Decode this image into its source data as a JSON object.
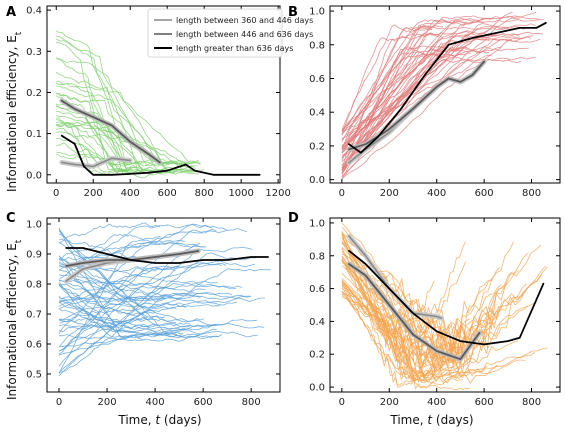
{
  "figure": {
    "ylabel_top": "Informational efficiency, E_t",
    "ylabel_bottom": "Informational efficiency, E_t",
    "xlabel_left": "Time, t (days)",
    "xlabel_right": "Time, t (days)"
  },
  "legend": {
    "placement": "top-right of panel A",
    "items": [
      {
        "label": "length between 360 and 446 days",
        "color": "#888888"
      },
      {
        "label": "length between 446 and 636 days",
        "color": "#555555"
      },
      {
        "label": "length greater than 636 days",
        "color": "#000000"
      }
    ]
  },
  "chart_data": [
    {
      "panel": "A",
      "type": "line",
      "thin_color": "#7ccf6a",
      "xlim": [
        -50,
        1210
      ],
      "ylim": [
        -0.02,
        0.41
      ],
      "xticks": [
        0,
        200,
        400,
        600,
        800,
        1000,
        1200
      ],
      "yticks": [
        0.0,
        0.1,
        0.2,
        0.3,
        0.4
      ],
      "yticklabels": [
        "0.0",
        "0.1",
        "0.2",
        "0.3",
        "0.4"
      ],
      "series": [
        {
          "style": "short",
          "x": [
            30,
            100,
            200,
            300,
            400
          ],
          "y": [
            0.03,
            0.025,
            0.02,
            0.04,
            0.035
          ]
        },
        {
          "style": "medium",
          "x": [
            30,
            100,
            200,
            300,
            400,
            500,
            560
          ],
          "y": [
            0.18,
            0.16,
            0.14,
            0.12,
            0.08,
            0.05,
            0.03
          ]
        },
        {
          "style": "long",
          "x": [
            30,
            100,
            150,
            200,
            300,
            400,
            500,
            600,
            700,
            750,
            850,
            1100
          ],
          "y": [
            0.095,
            0.075,
            0.02,
            0.0,
            0.0,
            0.002,
            0.005,
            0.01,
            0.025,
            0.01,
            0.0,
            0.0
          ]
        }
      ],
      "samples": {
        "count": 30,
        "xmax": [
          360,
          800
        ],
        "start": [
          0.05,
          0.36
        ],
        "end": [
          0.0,
          0.03
        ],
        "drop": [
          0.35,
          1.0
        ],
        "seed": 11,
        "monotone": "down"
      }
    },
    {
      "panel": "B",
      "type": "line",
      "thin_color": "#e07a7a",
      "xlim": [
        -50,
        920
      ],
      "ylim": [
        -0.02,
        1.03
      ],
      "xticks": [
        0,
        200,
        400,
        600,
        800
      ],
      "yticks": [
        0.0,
        0.2,
        0.4,
        0.6,
        0.8,
        1.0
      ],
      "yticklabels": [
        "0.0",
        "0.2",
        "0.4",
        "0.6",
        "0.8",
        "1.0"
      ],
      "series": [
        {
          "style": "short",
          "x": [
            30,
            100,
            200,
            300,
            400
          ],
          "y": [
            0.1,
            0.18,
            0.28,
            0.42,
            0.55
          ]
        },
        {
          "style": "medium",
          "x": [
            30,
            100,
            200,
            300,
            400,
            450,
            500,
            550,
            600
          ],
          "y": [
            0.18,
            0.21,
            0.3,
            0.42,
            0.55,
            0.6,
            0.58,
            0.62,
            0.7
          ]
        },
        {
          "style": "long",
          "x": [
            30,
            80,
            150,
            250,
            350,
            450,
            550,
            650,
            750,
            820,
            860
          ],
          "y": [
            0.21,
            0.16,
            0.25,
            0.42,
            0.62,
            0.8,
            0.84,
            0.87,
            0.9,
            0.9,
            0.93
          ]
        }
      ],
      "samples": {
        "count": 45,
        "xmax": [
          350,
          880
        ],
        "start": [
          0.0,
          0.3
        ],
        "end": [
          0.7,
          1.0
        ],
        "drop": [
          0.4,
          1.0
        ],
        "seed": 23,
        "monotone": "up"
      }
    },
    {
      "panel": "C",
      "type": "line",
      "thin_color": "#5aa0d8",
      "xlim": [
        -50,
        920
      ],
      "ylim": [
        0.44,
        1.02
      ],
      "xticks": [
        0,
        200,
        400,
        600,
        800
      ],
      "yticks": [
        0.5,
        0.6,
        0.7,
        0.8,
        0.9,
        1.0
      ],
      "yticklabels": [
        "0.5",
        "0.6",
        "0.7",
        "0.8",
        "0.9",
        "1.0"
      ],
      "series": [
        {
          "style": "short",
          "x": [
            30,
            100,
            200,
            300,
            400
          ],
          "y": [
            0.81,
            0.85,
            0.87,
            0.88,
            0.89
          ]
        },
        {
          "style": "medium",
          "x": [
            30,
            100,
            200,
            300,
            400,
            500,
            580
          ],
          "y": [
            0.86,
            0.87,
            0.88,
            0.88,
            0.89,
            0.9,
            0.91
          ]
        },
        {
          "style": "long",
          "x": [
            30,
            100,
            200,
            300,
            400,
            500,
            600,
            700,
            800,
            870
          ],
          "y": [
            0.92,
            0.92,
            0.9,
            0.88,
            0.87,
            0.87,
            0.88,
            0.88,
            0.89,
            0.89
          ]
        }
      ],
      "samples": {
        "count": 55,
        "xmax": [
          350,
          900
        ],
        "start": [
          0.46,
          1.0
        ],
        "end": [
          0.62,
          1.0
        ],
        "drop": [
          0.3,
          1.0
        ],
        "seed": 37,
        "monotone": "mixed"
      }
    },
    {
      "panel": "D",
      "type": "line",
      "thin_color": "#f5a550",
      "xlim": [
        -50,
        920
      ],
      "ylim": [
        -0.03,
        1.03
      ],
      "xticks": [
        0,
        200,
        400,
        600,
        800
      ],
      "yticks": [
        0.0,
        0.2,
        0.4,
        0.6,
        0.8,
        1.0
      ],
      "yticklabels": [
        "0.0",
        "0.2",
        "0.4",
        "0.6",
        "0.8",
        "1.0"
      ],
      "series": [
        {
          "style": "short",
          "x": [
            30,
            100,
            200,
            300,
            400,
            420
          ],
          "y": [
            0.92,
            0.8,
            0.6,
            0.45,
            0.43,
            0.42
          ]
        },
        {
          "style": "medium",
          "x": [
            30,
            100,
            200,
            300,
            400,
            500,
            580
          ],
          "y": [
            0.75,
            0.68,
            0.5,
            0.32,
            0.22,
            0.17,
            0.33
          ]
        },
        {
          "style": "long",
          "x": [
            30,
            100,
            200,
            300,
            400,
            500,
            600,
            700,
            750,
            850
          ],
          "y": [
            0.83,
            0.75,
            0.6,
            0.45,
            0.34,
            0.28,
            0.26,
            0.28,
            0.3,
            0.63
          ]
        }
      ],
      "samples": {
        "count": 45,
        "xmax": [
          350,
          880
        ],
        "start": [
          0.55,
          1.0
        ],
        "end": [
          0.0,
          0.9
        ],
        "drop": [
          0.3,
          0.8
        ],
        "seed": 53,
        "monotone": "valley"
      }
    }
  ]
}
